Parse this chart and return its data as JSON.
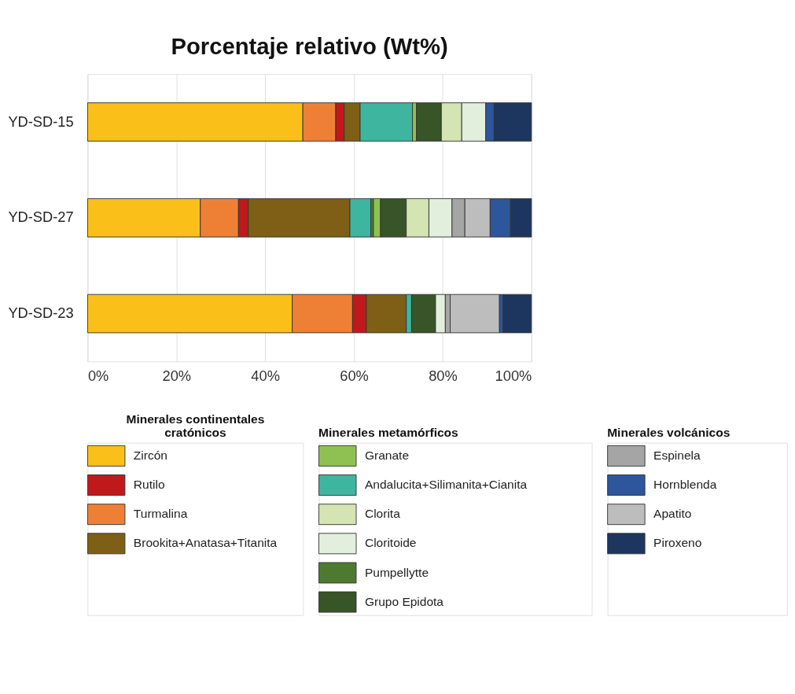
{
  "chart_data": {
    "type": "bar",
    "orientation": "horizontal",
    "stacked": true,
    "title": "Porcentaje relativo (Wt%)",
    "categories": [
      "YD-SD-15",
      "YD-SD-27",
      "YD-SD-23"
    ],
    "series": [
      {
        "name": "Zircón",
        "color": "#fbbf1a",
        "values": [
          48.5,
          25.4,
          46.1
        ]
      },
      {
        "name": "Turmalina",
        "color": "#ee8035",
        "values": [
          7.4,
          8.6,
          13.6
        ]
      },
      {
        "name": "Rutilo",
        "color": "#c0191b",
        "values": [
          1.9,
          2.2,
          3.1
        ]
      },
      {
        "name": "Brookita+Anatasa+Titanita",
        "color": "#7f5f16",
        "values": [
          3.6,
          22.9,
          9.0
        ]
      },
      {
        "name": "Andalucita+Silimanita+Cianita",
        "color": "#3eb59f",
        "values": [
          11.8,
          4.7,
          1.2
        ]
      },
      {
        "name": "Pumpellytte",
        "color": "#4e7a30",
        "values": [
          null,
          0.6,
          null
        ]
      },
      {
        "name": "Granate",
        "color": "#8fc152",
        "values": [
          0.9,
          1.6,
          null
        ]
      },
      {
        "name": "Grupo Epidota",
        "color": "#375526",
        "values": [
          5.6,
          5.8,
          5.4
        ]
      },
      {
        "name": "Clorita",
        "color": "#d4e4b2",
        "values": [
          4.6,
          5.1,
          null
        ]
      },
      {
        "name": "Cloritoide",
        "color": "#e2efdc",
        "values": [
          5.4,
          5.2,
          2.2
        ]
      },
      {
        "name": "Espinela",
        "color": "#a5a5a5",
        "values": [
          null,
          2.9,
          1.1
        ]
      },
      {
        "name": "Apatito",
        "color": "#bdbdbd",
        "values": [
          null,
          5.7,
          11.1
        ]
      },
      {
        "name": "Hornblenda",
        "color": "#2d569b",
        "values": [
          1.9,
          4.6,
          0.8
        ]
      },
      {
        "name": "Piroxeno",
        "color": "#1d3660",
        "values": [
          8.4,
          4.7,
          6.4
        ]
      }
    ],
    "xlim": [
      0,
      100
    ],
    "xticks": [
      {
        "value": 0,
        "label": "0%"
      },
      {
        "value": 20,
        "label": "20%"
      },
      {
        "value": 40,
        "label": "40%"
      },
      {
        "value": 60,
        "label": "60%"
      },
      {
        "value": 80,
        "label": "80%"
      },
      {
        "value": 100,
        "label": "100%"
      }
    ],
    "grid": "x",
    "legend": "bottom",
    "annotations": [
      "Minerales continentales cratónicos",
      "Minerales metamórficos",
      "Minerales volcánicos"
    ]
  }
}
